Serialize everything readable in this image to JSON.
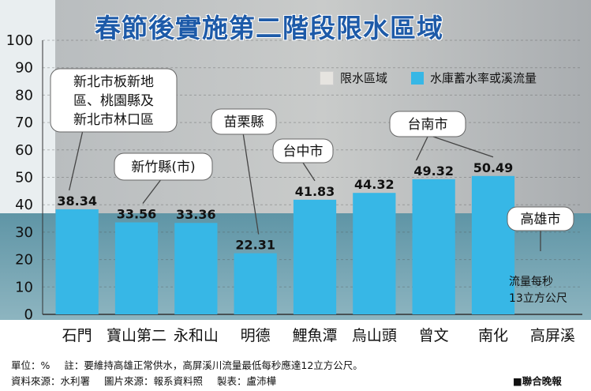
{
  "title": "春節後實施第二階段限水區域",
  "legend": {
    "restricted": {
      "label": "限水區域",
      "color": "#e6e4e0"
    },
    "rate": {
      "label": "水庫蓄水率或溪流量",
      "color": "#37b7e6"
    }
  },
  "chart_data": {
    "type": "bar",
    "categories": [
      "石門",
      "寶山第二",
      "永和山",
      "明德",
      "鯉魚潭",
      "烏山頭",
      "曾文",
      "南化",
      "高屏溪"
    ],
    "values": [
      38.34,
      33.56,
      33.36,
      22.31,
      41.83,
      44.32,
      49.32,
      50.49,
      null
    ],
    "value_labels": [
      "38.34",
      "33.56",
      "33.36",
      "22.31",
      "41.83",
      "44.32",
      "49.32",
      "50.49",
      ""
    ],
    "ylim": [
      0,
      100
    ],
    "yticks": [
      0,
      10,
      20,
      30,
      40,
      50,
      60,
      70,
      80,
      90,
      100
    ],
    "bar_color": "#37b7e6",
    "callouts": [
      {
        "lines": [
          "新北市板新地",
          "區、桃園縣及",
          "新北市林口區"
        ]
      },
      {
        "lines": [
          "新竹縣(市)"
        ]
      },
      {
        "lines": [
          "苗栗縣"
        ]
      },
      {
        "lines": [
          "台中市"
        ]
      },
      {
        "lines": [
          "台南市"
        ]
      },
      {
        "lines": [
          "高雄市"
        ]
      }
    ],
    "kaohsiung_note": [
      "流量每秒",
      "13立方公尺"
    ]
  },
  "footer": {
    "unit": "單位：%",
    "note": "註：要維持高雄正常供水，高屏溪川流量最低每秒應達12立方公尺。",
    "data_source": "資料來源：水利署",
    "photo_source": "圖片來源：報系資料照",
    "maker": "製表：盧沛樺",
    "publisher": "■聯合晚報"
  }
}
